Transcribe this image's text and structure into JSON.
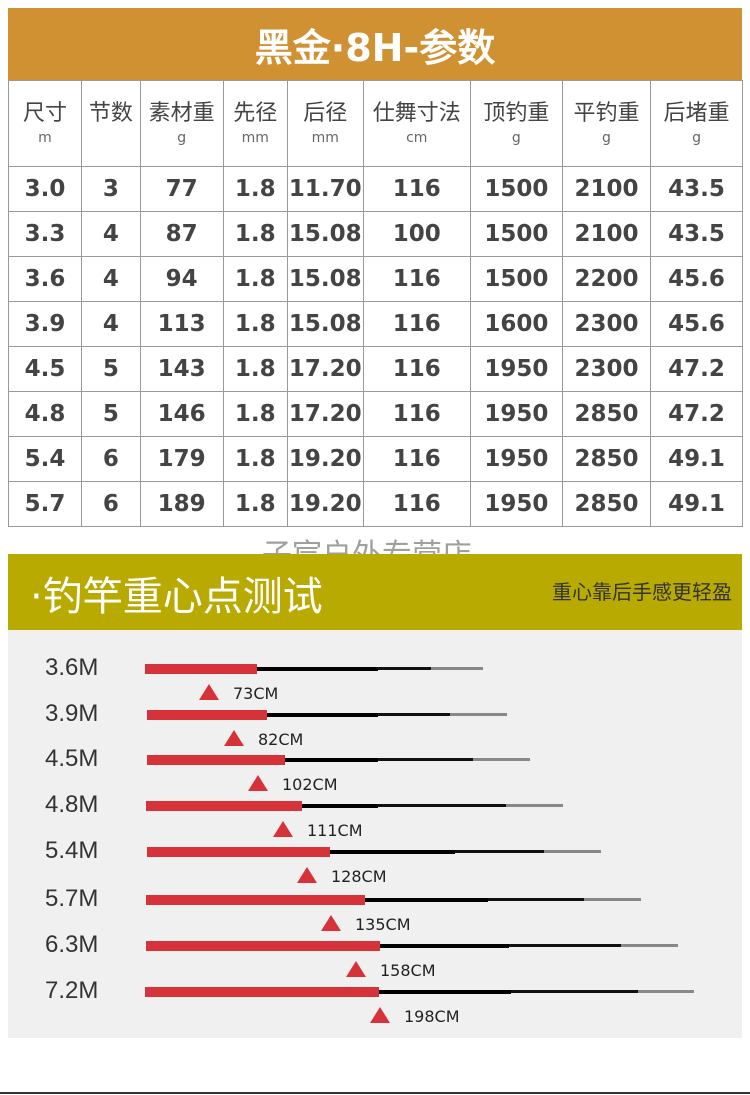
{
  "title": "黑金·8H-参数",
  "table": {
    "headers": [
      {
        "label": "尺寸",
        "unit": "m"
      },
      {
        "label": "节数",
        "unit": ""
      },
      {
        "label": "素材重",
        "unit": "g"
      },
      {
        "label": "先径",
        "unit": "mm"
      },
      {
        "label": "后径",
        "unit": "mm"
      },
      {
        "label": "仕舞寸法",
        "unit": "cm"
      },
      {
        "label": "顶钓重",
        "unit": "g"
      },
      {
        "label": "平钓重",
        "unit": "g"
      },
      {
        "label": "后堵重",
        "unit": "g"
      }
    ],
    "rows": [
      [
        "3.0",
        "3",
        "77",
        "1.8",
        "11.70",
        "116",
        "1500",
        "2100",
        "43.5"
      ],
      [
        "3.3",
        "4",
        "87",
        "1.8",
        "15.08",
        "100",
        "1500",
        "2100",
        "43.5"
      ],
      [
        "3.6",
        "4",
        "94",
        "1.8",
        "15.08",
        "116",
        "1500",
        "2200",
        "45.6"
      ],
      [
        "3.9",
        "4",
        "113",
        "1.8",
        "15.08",
        "116",
        "1600",
        "2300",
        "45.6"
      ],
      [
        "4.5",
        "5",
        "143",
        "1.8",
        "17.20",
        "116",
        "1950",
        "2300",
        "47.2"
      ],
      [
        "4.8",
        "5",
        "146",
        "1.8",
        "17.20",
        "116",
        "1950",
        "2850",
        "47.2"
      ],
      [
        "5.4",
        "6",
        "179",
        "1.8",
        "19.20",
        "116",
        "1950",
        "2850",
        "49.1"
      ],
      [
        "5.7",
        "6",
        "189",
        "1.8",
        "19.20",
        "116",
        "1950",
        "2850",
        "49.1"
      ]
    ]
  },
  "watermark": "子宸户外专营店",
  "section": {
    "title": "·钓竿重心点测试",
    "subtitle": "重心靠后手感更轻盈"
  },
  "balance": [
    {
      "length": "3.6M",
      "point": "73CM"
    },
    {
      "length": "3.9M",
      "point": "82CM"
    },
    {
      "length": "4.5M",
      "point": "102CM"
    },
    {
      "length": "4.8M",
      "point": "111CM"
    },
    {
      "length": "5.4M",
      "point": "128CM"
    },
    {
      "length": "5.7M",
      "point": "135CM"
    },
    {
      "length": "6.3M",
      "point": "158CM"
    },
    {
      "length": "7.2M",
      "point": "198CM"
    }
  ],
  "colors": {
    "title_bg": "#cf9132",
    "band_bg": "#b8aa00",
    "rod_grip": "#d6323a",
    "marker": "#d6323a"
  }
}
